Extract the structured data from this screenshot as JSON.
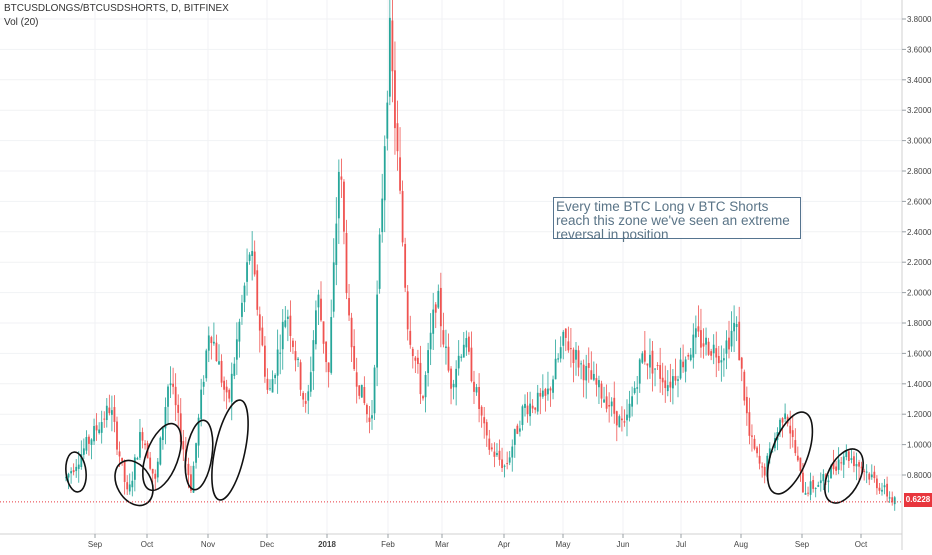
{
  "header": {
    "symbol_line": "BTCUSDLONGS/BTCUSDSHORTS, D, BITFINEX",
    "indicator_line": "Vol (20)"
  },
  "annotation": {
    "line1": "Every time BTC Long v BTC Shorts",
    "line2": "reach this zone we've seen an extreme",
    "line3": "reversal in position"
  },
  "last_price_label": "0.6228",
  "colors": {
    "up": "#26a69a",
    "down": "#ef5350",
    "price_line": "#e8363d",
    "annotation": "#55748f",
    "circles": "#111111"
  },
  "chart_data": {
    "type": "candlestick",
    "title": "BTCUSDLONGS/BTCUSDSHORTS, D, BITFINEX",
    "ylim": [
      0.55,
      3.87
    ],
    "y_ticks": [
      "3.8000",
      "3.6000",
      "3.4000",
      "3.2000",
      "3.0000",
      "2.8000",
      "2.6000",
      "2.4000",
      "2.2000",
      "2.0000",
      "1.8000",
      "1.6000",
      "1.4000",
      "1.2000",
      "1.0000",
      "0.8000"
    ],
    "x_ticks": [
      "Sep",
      "Oct",
      "Nov",
      "Dec",
      "2018",
      "Feb",
      "Mar",
      "Apr",
      "May",
      "Jun",
      "Jul",
      "Aug",
      "Sep",
      "Oct"
    ],
    "last_price": 0.6228,
    "grid": true,
    "anchors": [
      [
        "Sep",
        0.78
      ],
      [
        "Sep",
        1.25
      ],
      [
        "Oct",
        0.65
      ],
      [
        "Oct",
        1.1
      ],
      [
        "Oct",
        0.75
      ],
      [
        "Oct",
        1.45
      ],
      [
        "Nov",
        0.72
      ],
      [
        "Nov",
        1.8
      ],
      [
        "Nov",
        1.25
      ],
      [
        "Dec",
        2.3
      ],
      [
        "Dec",
        1.3
      ],
      [
        "Dec",
        1.9
      ],
      [
        "2018",
        1.2
      ],
      [
        "2018",
        2.0
      ],
      [
        "2018",
        1.45
      ],
      [
        "2018",
        2.9
      ],
      [
        "2018",
        1.6
      ],
      [
        "Feb",
        1.1
      ],
      [
        "Feb",
        3.7
      ],
      [
        "Feb",
        1.8
      ],
      [
        "Mar",
        1.3
      ],
      [
        "Mar",
        2.0
      ],
      [
        "Mar",
        1.4
      ],
      [
        "Mar",
        1.7
      ],
      [
        "Apr",
        1.0
      ],
      [
        "Apr",
        0.85
      ],
      [
        "Apr",
        1.25
      ],
      [
        "May",
        1.3
      ],
      [
        "May",
        1.7
      ],
      [
        "May",
        1.5
      ],
      [
        "Jun",
        1.3
      ],
      [
        "Jun",
        1.1
      ],
      [
        "Jun",
        1.6
      ],
      [
        "Jul",
        1.4
      ],
      [
        "Jul",
        1.7
      ],
      [
        "Aug",
        1.6
      ],
      [
        "Aug",
        1.8
      ],
      [
        "Aug",
        1.05
      ],
      [
        "Aug",
        0.8
      ],
      [
        "Sep",
        1.25
      ],
      [
        "Sep",
        0.7
      ],
      [
        "Sep",
        0.75
      ],
      [
        "Oct",
        0.95
      ],
      [
        "Oct",
        0.85
      ],
      [
        "Oct",
        0.62
      ]
    ]
  }
}
